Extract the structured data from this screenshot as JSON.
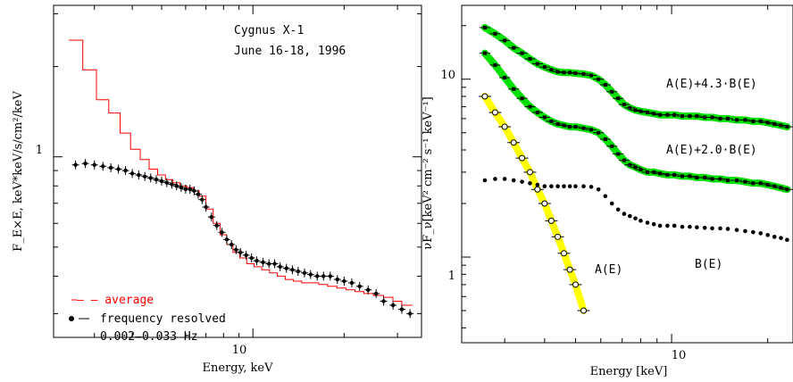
{
  "chart_data": [
    {
      "type": "line",
      "xscale": "log",
      "yscale": "log",
      "xlim": [
        2.2,
        36
      ],
      "ylim": [
        0.25,
        3.2
      ],
      "xlabel": "Energy, keV",
      "ylabel": "F_E×E, keV*keV/s/cm²/keV",
      "xticklabels": [
        "10"
      ],
      "yticklabels": [
        "1"
      ],
      "annotations": [
        "Cygnus X-1",
        "June 16-18, 1996"
      ],
      "legend": {
        "placement": "bottom-left",
        "entries": [
          "– – average",
          "frequency resolved",
          "0.002–0.033 Hz"
        ]
      },
      "series": [
        {
          "name": "average",
          "style": "step",
          "color": "#ff0000",
          "x": [
            2.6,
            2.9,
            3.2,
            3.5,
            3.8,
            4.1,
            4.4,
            4.7,
            5.0,
            5.3,
            5.6,
            5.9,
            6.2,
            6.5,
            6.8,
            7.2,
            7.6,
            8.0,
            8.4,
            8.8,
            9.3,
            9.8,
            10.4,
            11.0,
            11.7,
            12.4,
            13.2,
            14.0,
            15.0,
            16.0,
            17.0,
            18.3,
            19.6,
            21.0,
            22.5,
            24.0,
            26.0,
            28.0,
            30.0,
            32.0
          ],
          "values": [
            2.45,
            1.95,
            1.55,
            1.4,
            1.2,
            1.06,
            0.98,
            0.91,
            0.87,
            0.84,
            0.82,
            0.8,
            0.79,
            0.77,
            0.74,
            0.67,
            0.6,
            0.55,
            0.51,
            0.48,
            0.46,
            0.44,
            0.43,
            0.42,
            0.41,
            0.4,
            0.39,
            0.385,
            0.38,
            0.38,
            0.375,
            0.37,
            0.365,
            0.36,
            0.355,
            0.35,
            0.345,
            0.34,
            0.33,
            0.32
          ]
        },
        {
          "name": "frequency resolved",
          "style": "points",
          "color": "#000000",
          "x": [
            2.6,
            2.8,
            3.0,
            3.2,
            3.4,
            3.6,
            3.8,
            4.0,
            4.2,
            4.4,
            4.6,
            4.8,
            5.0,
            5.2,
            5.4,
            5.6,
            5.8,
            6.0,
            6.2,
            6.4,
            6.6,
            6.8,
            7.0,
            7.3,
            7.6,
            7.9,
            8.2,
            8.5,
            8.8,
            9.1,
            9.5,
            9.9,
            10.3,
            10.8,
            11.3,
            11.8,
            12.3,
            12.9,
            13.5,
            14.1,
            14.8,
            15.5,
            16.3,
            17.1,
            18.0,
            19.0,
            20.0,
            21.2,
            22.5,
            24.0,
            25.5,
            27.0,
            29.0,
            31.0,
            33.0
          ],
          "values": [
            0.94,
            0.95,
            0.94,
            0.93,
            0.92,
            0.91,
            0.9,
            0.88,
            0.87,
            0.86,
            0.85,
            0.84,
            0.83,
            0.82,
            0.81,
            0.8,
            0.79,
            0.78,
            0.78,
            0.77,
            0.75,
            0.72,
            0.68,
            0.63,
            0.59,
            0.56,
            0.53,
            0.51,
            0.49,
            0.48,
            0.47,
            0.46,
            0.45,
            0.445,
            0.44,
            0.44,
            0.43,
            0.425,
            0.42,
            0.415,
            0.41,
            0.405,
            0.4,
            0.4,
            0.4,
            0.39,
            0.385,
            0.38,
            0.37,
            0.36,
            0.35,
            0.33,
            0.32,
            0.31,
            0.3
          ]
        }
      ]
    },
    {
      "type": "line",
      "xscale": "log",
      "yscale": "log",
      "xlim": [
        2.2,
        24
      ],
      "ylim": [
        0.33,
        26
      ],
      "xlabel": "Energy [keV]",
      "ylabel": "νF_ν[keV² cm⁻² s⁻¹ keV⁻¹]",
      "xticklabels": [
        "10"
      ],
      "yticklabels": [
        "10",
        "1"
      ],
      "series": [
        {
          "name": "A(E)+4.3·B(E)",
          "style": "band+points",
          "color": "#00e000",
          "x": [
            2.6,
            2.8,
            3.0,
            3.2,
            3.4,
            3.6,
            3.8,
            4.0,
            4.2,
            4.4,
            4.6,
            4.8,
            5.0,
            5.3,
            5.6,
            5.9,
            6.2,
            6.5,
            6.8,
            7.1,
            7.4,
            7.7,
            8.0,
            8.4,
            8.8,
            9.2,
            9.7,
            10.2,
            10.8,
            11.4,
            12.0,
            12.7,
            13.4,
            14.2,
            15.0,
            16.0,
            17.0,
            18.0,
            19.0,
            20.0,
            21.0,
            22.0,
            23.0
          ],
          "values": [
            19.5,
            18.0,
            16.5,
            15.0,
            14.0,
            13.0,
            12.2,
            11.7,
            11.3,
            11.0,
            10.9,
            10.9,
            10.8,
            10.7,
            10.5,
            10.0,
            9.3,
            8.5,
            7.8,
            7.2,
            6.9,
            6.7,
            6.6,
            6.5,
            6.4,
            6.3,
            6.3,
            6.3,
            6.2,
            6.2,
            6.2,
            6.1,
            6.1,
            6.0,
            6.0,
            5.9,
            5.9,
            5.8,
            5.8,
            5.7,
            5.6,
            5.5,
            5.4
          ]
        },
        {
          "name": "A(E)+2.0·B(E)",
          "style": "band+points",
          "color": "#00e000",
          "x": [
            2.6,
            2.8,
            3.0,
            3.2,
            3.4,
            3.6,
            3.8,
            4.0,
            4.2,
            4.4,
            4.6,
            4.8,
            5.0,
            5.3,
            5.6,
            5.9,
            6.2,
            6.5,
            6.8,
            7.1,
            7.4,
            7.7,
            8.0,
            8.4,
            8.8,
            9.2,
            9.7,
            10.2,
            10.8,
            11.4,
            12.0,
            12.7,
            13.4,
            14.2,
            15.0,
            16.0,
            17.0,
            18.0,
            19.0,
            20.0,
            21.0,
            22.0,
            23.0
          ],
          "values": [
            14.0,
            12.0,
            10.2,
            8.8,
            7.8,
            7.0,
            6.5,
            6.1,
            5.8,
            5.6,
            5.5,
            5.4,
            5.4,
            5.3,
            5.2,
            5.0,
            4.6,
            4.2,
            3.8,
            3.5,
            3.3,
            3.2,
            3.1,
            3.0,
            3.0,
            2.95,
            2.9,
            2.9,
            2.85,
            2.85,
            2.8,
            2.8,
            2.75,
            2.75,
            2.7,
            2.7,
            2.65,
            2.6,
            2.6,
            2.55,
            2.5,
            2.45,
            2.4
          ]
        },
        {
          "name": "B(E)",
          "style": "points",
          "color": "#000000",
          "x": [
            2.6,
            2.8,
            3.0,
            3.2,
            3.4,
            3.6,
            3.8,
            4.0,
            4.2,
            4.4,
            4.6,
            4.8,
            5.0,
            5.3,
            5.6,
            5.9,
            6.2,
            6.5,
            6.8,
            7.1,
            7.4,
            7.7,
            8.0,
            8.4,
            8.8,
            9.2,
            9.7,
            10.2,
            10.8,
            11.4,
            12.0,
            12.7,
            13.4,
            14.2,
            15.0,
            16.0,
            17.0,
            18.0,
            19.0,
            20.0,
            21.0,
            22.0,
            23.0
          ],
          "values": [
            2.7,
            2.75,
            2.75,
            2.7,
            2.65,
            2.6,
            2.55,
            2.5,
            2.5,
            2.5,
            2.5,
            2.5,
            2.5,
            2.5,
            2.48,
            2.4,
            2.2,
            2.0,
            1.85,
            1.75,
            1.7,
            1.65,
            1.6,
            1.56,
            1.53,
            1.5,
            1.5,
            1.5,
            1.48,
            1.48,
            1.47,
            1.46,
            1.45,
            1.45,
            1.44,
            1.42,
            1.4,
            1.38,
            1.36,
            1.33,
            1.3,
            1.28,
            1.25
          ]
        },
        {
          "name": "A(E)",
          "style": "band+points",
          "color": "#ffff00",
          "x": [
            2.6,
            2.8,
            3.0,
            3.2,
            3.4,
            3.6,
            3.8,
            4.0,
            4.2,
            4.4,
            4.6,
            4.8,
            5.0,
            5.3
          ],
          "values": [
            8.0,
            6.5,
            5.4,
            4.4,
            3.6,
            3.0,
            2.4,
            2.0,
            1.6,
            1.3,
            1.05,
            0.85,
            0.7,
            0.5
          ]
        }
      ]
    }
  ]
}
